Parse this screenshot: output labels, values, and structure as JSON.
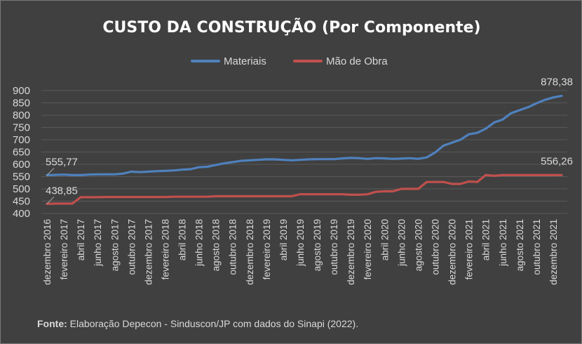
{
  "colors": {
    "background": "#404040",
    "grid": "#595959",
    "materiais": "#4f81bd",
    "mao_de_obra": "#c0504d"
  },
  "chart_data": {
    "type": "line",
    "title": "CUSTO DA CONSTRUÇÃO (Por Componente)",
    "xlabel": "",
    "ylabel": "",
    "ylim": [
      400,
      900
    ],
    "yticks": [
      "900",
      "850",
      "800",
      "750",
      "700",
      "650",
      "600",
      "550",
      "500",
      "450",
      "400"
    ],
    "grid": true,
    "legend_position": "top",
    "x_tick_labels": [
      "dezembro 2016",
      "fevereiro 2017",
      "abril 2017",
      "junho 2017",
      "agosto 2017",
      "outubro 2017",
      "dezembro 2017",
      "fevereiro 2018",
      "abril 2018",
      "junho 2018",
      "agosto 2018",
      "outubro 2018",
      "dezembro 2018",
      "fevereiro 2019",
      "abril 2019",
      "junho 2019",
      "agosto 2019",
      "outubro 2019",
      "dezembro 2019",
      "fevereiro 2020",
      "abril 2020",
      "junho 2020",
      "agosto 2020",
      "outubro 2020",
      "dezembro 2020",
      "fevereiro 2021",
      "abril 2021",
      "junho 2021",
      "agosto 2021",
      "outubro 2021",
      "dezembro 2021"
    ],
    "series": [
      {
        "name": "Materiais",
        "first_label": "555,77",
        "last_label": "878,38",
        "values": [
          555.77,
          557,
          558,
          556,
          556,
          558,
          559,
          559,
          559,
          562,
          570,
          568,
          570,
          572,
          573,
          575,
          578,
          580,
          588,
          590,
          597,
          604,
          609,
          614,
          616,
          618,
          620,
          620,
          618,
          616,
          618,
          620,
          621,
          621,
          621,
          624,
          626,
          625,
          622,
          625,
          624,
          622,
          623,
          625,
          622,
          628,
          648,
          676,
          688,
          700,
          722,
          728,
          745,
          770,
          782,
          808,
          820,
          832,
          848,
          862,
          872,
          878.38
        ]
      },
      {
        "name": "Mão de Obra",
        "first_label": "438,85",
        "last_label": "556,26",
        "values": [
          438.85,
          440,
          440,
          440,
          466,
          466,
          466,
          467,
          467,
          467,
          467,
          467,
          467,
          467,
          467,
          468,
          468,
          468,
          468,
          468,
          470,
          470,
          470,
          470,
          470,
          470,
          470,
          470,
          470,
          470,
          478,
          478,
          478,
          478,
          478,
          478,
          476,
          476,
          478,
          488,
          490,
          490,
          500,
          500,
          500,
          528,
          528,
          528,
          520,
          520,
          530,
          528,
          556,
          553,
          556,
          556,
          556,
          556,
          556,
          556,
          556,
          556.26
        ]
      }
    ]
  },
  "source": {
    "lead": "Fonte:",
    "text": " Elaboração Depecon - Sinduscon/JP com dados do Sinapi (2022)."
  }
}
